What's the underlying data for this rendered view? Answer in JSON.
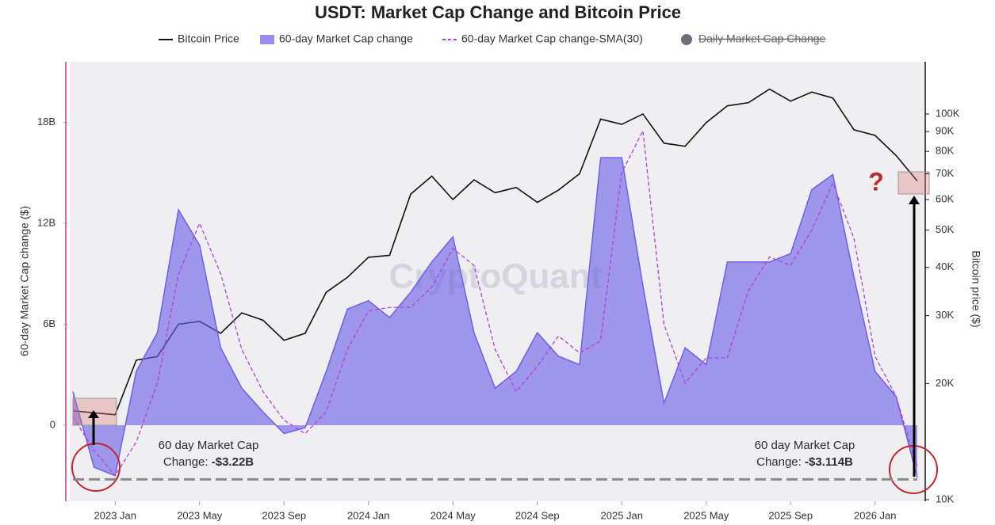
{
  "chart_data": {
    "type": "combo",
    "title": "USDT: Market Cap Change and Bitcoin Price",
    "y_label": "60-day Market Cap change ($)",
    "y2_label": "Bitcoin price ($)",
    "watermark": "CryptoQuant",
    "question_mark": "?",
    "x": [
      "2022-11",
      "2022-12",
      "2023-01",
      "2023-02",
      "2023-03",
      "2023-04",
      "2023-05",
      "2023-06",
      "2023-07",
      "2023-08",
      "2023-09",
      "2023-10",
      "2023-11",
      "2023-12",
      "2024-01",
      "2024-02",
      "2024-03",
      "2024-04",
      "2024-05",
      "2024-06",
      "2024-07",
      "2024-08",
      "2024-09",
      "2024-10",
      "2024-11",
      "2024-12",
      "2025-01",
      "2025-02",
      "2025-03",
      "2025-04",
      "2025-05",
      "2025-06",
      "2025-07",
      "2025-08",
      "2025-09",
      "2025-10",
      "2025-11",
      "2025-12",
      "2026-01",
      "2026-02",
      "2026-03"
    ],
    "xlim": [
      "2022-11",
      "2026-03"
    ],
    "xticks": [
      {
        "value": "2023-01",
        "label": "2023 Jan"
      },
      {
        "value": "2023-05",
        "label": "2023 May"
      },
      {
        "value": "2023-09",
        "label": "2023 Sep"
      },
      {
        "value": "2024-01",
        "label": "2024 Jan"
      },
      {
        "value": "2024-05",
        "label": "2024 May"
      },
      {
        "value": "2024-09",
        "label": "2024 Sep"
      },
      {
        "value": "2025-01",
        "label": "2025 Jan"
      },
      {
        "value": "2025-05",
        "label": "2025 May"
      },
      {
        "value": "2025-09",
        "label": "2025 Sep"
      },
      {
        "value": "2026-01",
        "label": "2026 Jan"
      }
    ],
    "ylim": [
      -4.52,
      21.6
    ],
    "yticks": [
      0,
      {
        "value": 6,
        "label": "6B"
      },
      {
        "value": 12,
        "label": "12B"
      },
      {
        "value": 18,
        "label": "18B"
      }
    ],
    "y2lim": [
      9906,
      136600
    ],
    "y2_log": true,
    "y2ticks": [
      {
        "value": 10000,
        "label": "10K"
      },
      {
        "value": 20000,
        "label": "20K"
      },
      {
        "value": 30000,
        "label": "30K"
      },
      {
        "value": 40000,
        "label": "40K"
      },
      {
        "value": 50000,
        "label": "50K"
      },
      {
        "value": 60000,
        "label": "60K"
      },
      {
        "value": 70000,
        "label": "70K"
      },
      {
        "value": 80000,
        "label": "80K"
      },
      {
        "value": 90000,
        "label": "90K"
      },
      {
        "value": 100000,
        "label": "100K"
      }
    ],
    "series": [
      {
        "name": "Bitcoin Price",
        "color": "#111111",
        "style": "line",
        "axis": "y2",
        "values": [
          17000,
          16800,
          16600,
          23000,
          23500,
          28500,
          29000,
          27000,
          30500,
          29200,
          25900,
          27000,
          34500,
          37700,
          42500,
          43000,
          62000,
          69000,
          60000,
          67500,
          62500,
          64500,
          59000,
          63500,
          70000,
          97000,
          94000,
          100000,
          84000,
          82500,
          95000,
          105000,
          107000,
          116000,
          108000,
          114000,
          110000,
          91000,
          88000,
          78000,
          67000
        ]
      },
      {
        "name": "60-day Market Cap change",
        "color": "#6c60e6",
        "style": "area",
        "values": [
          2.0,
          -2.5,
          -3.0,
          3.2,
          5.5,
          12.8,
          10.7,
          4.6,
          2.2,
          0.8,
          -0.5,
          -0.15,
          3.2,
          6.9,
          7.4,
          6.4,
          7.9,
          9.7,
          11.2,
          5.5,
          2.2,
          3.2,
          5.5,
          4.1,
          3.6,
          15.9,
          15.9,
          8.3,
          1.3,
          4.6,
          3.6,
          9.7,
          9.7,
          9.7,
          10.2,
          14.0,
          14.9,
          8.8,
          3.2,
          1.7,
          -3.114
        ]
      },
      {
        "name": "60-day Market Cap change-SMA(30)",
        "color": "#b23fe0",
        "style": "dash",
        "values": [
          0.5,
          -1.5,
          -3.0,
          -1.0,
          2.5,
          9.0,
          12.0,
          9.0,
          4.5,
          2.0,
          0.3,
          -0.5,
          0.8,
          4.5,
          6.8,
          7.0,
          7.0,
          8.2,
          10.5,
          9.5,
          4.5,
          2.0,
          3.5,
          5.3,
          4.3,
          5.0,
          15.0,
          17.5,
          6.0,
          2.5,
          4.0,
          4.0,
          8.0,
          10.0,
          9.5,
          11.6,
          14.4,
          11.1,
          4.1,
          1.7,
          -2.5
        ]
      }
    ],
    "hidden_series": [
      {
        "name": "Daily Market Cap Change",
        "color": "#6e6e7a"
      }
    ],
    "reference_line": -3.22,
    "annotations": [
      {
        "line1": "60 day Market Cap",
        "line2": "Change:",
        "emphasis": "-$3.22B"
      },
      {
        "line1": "60 day Market Cap",
        "line2": "Change:",
        "emphasis": "-$3.114B"
      }
    ]
  }
}
